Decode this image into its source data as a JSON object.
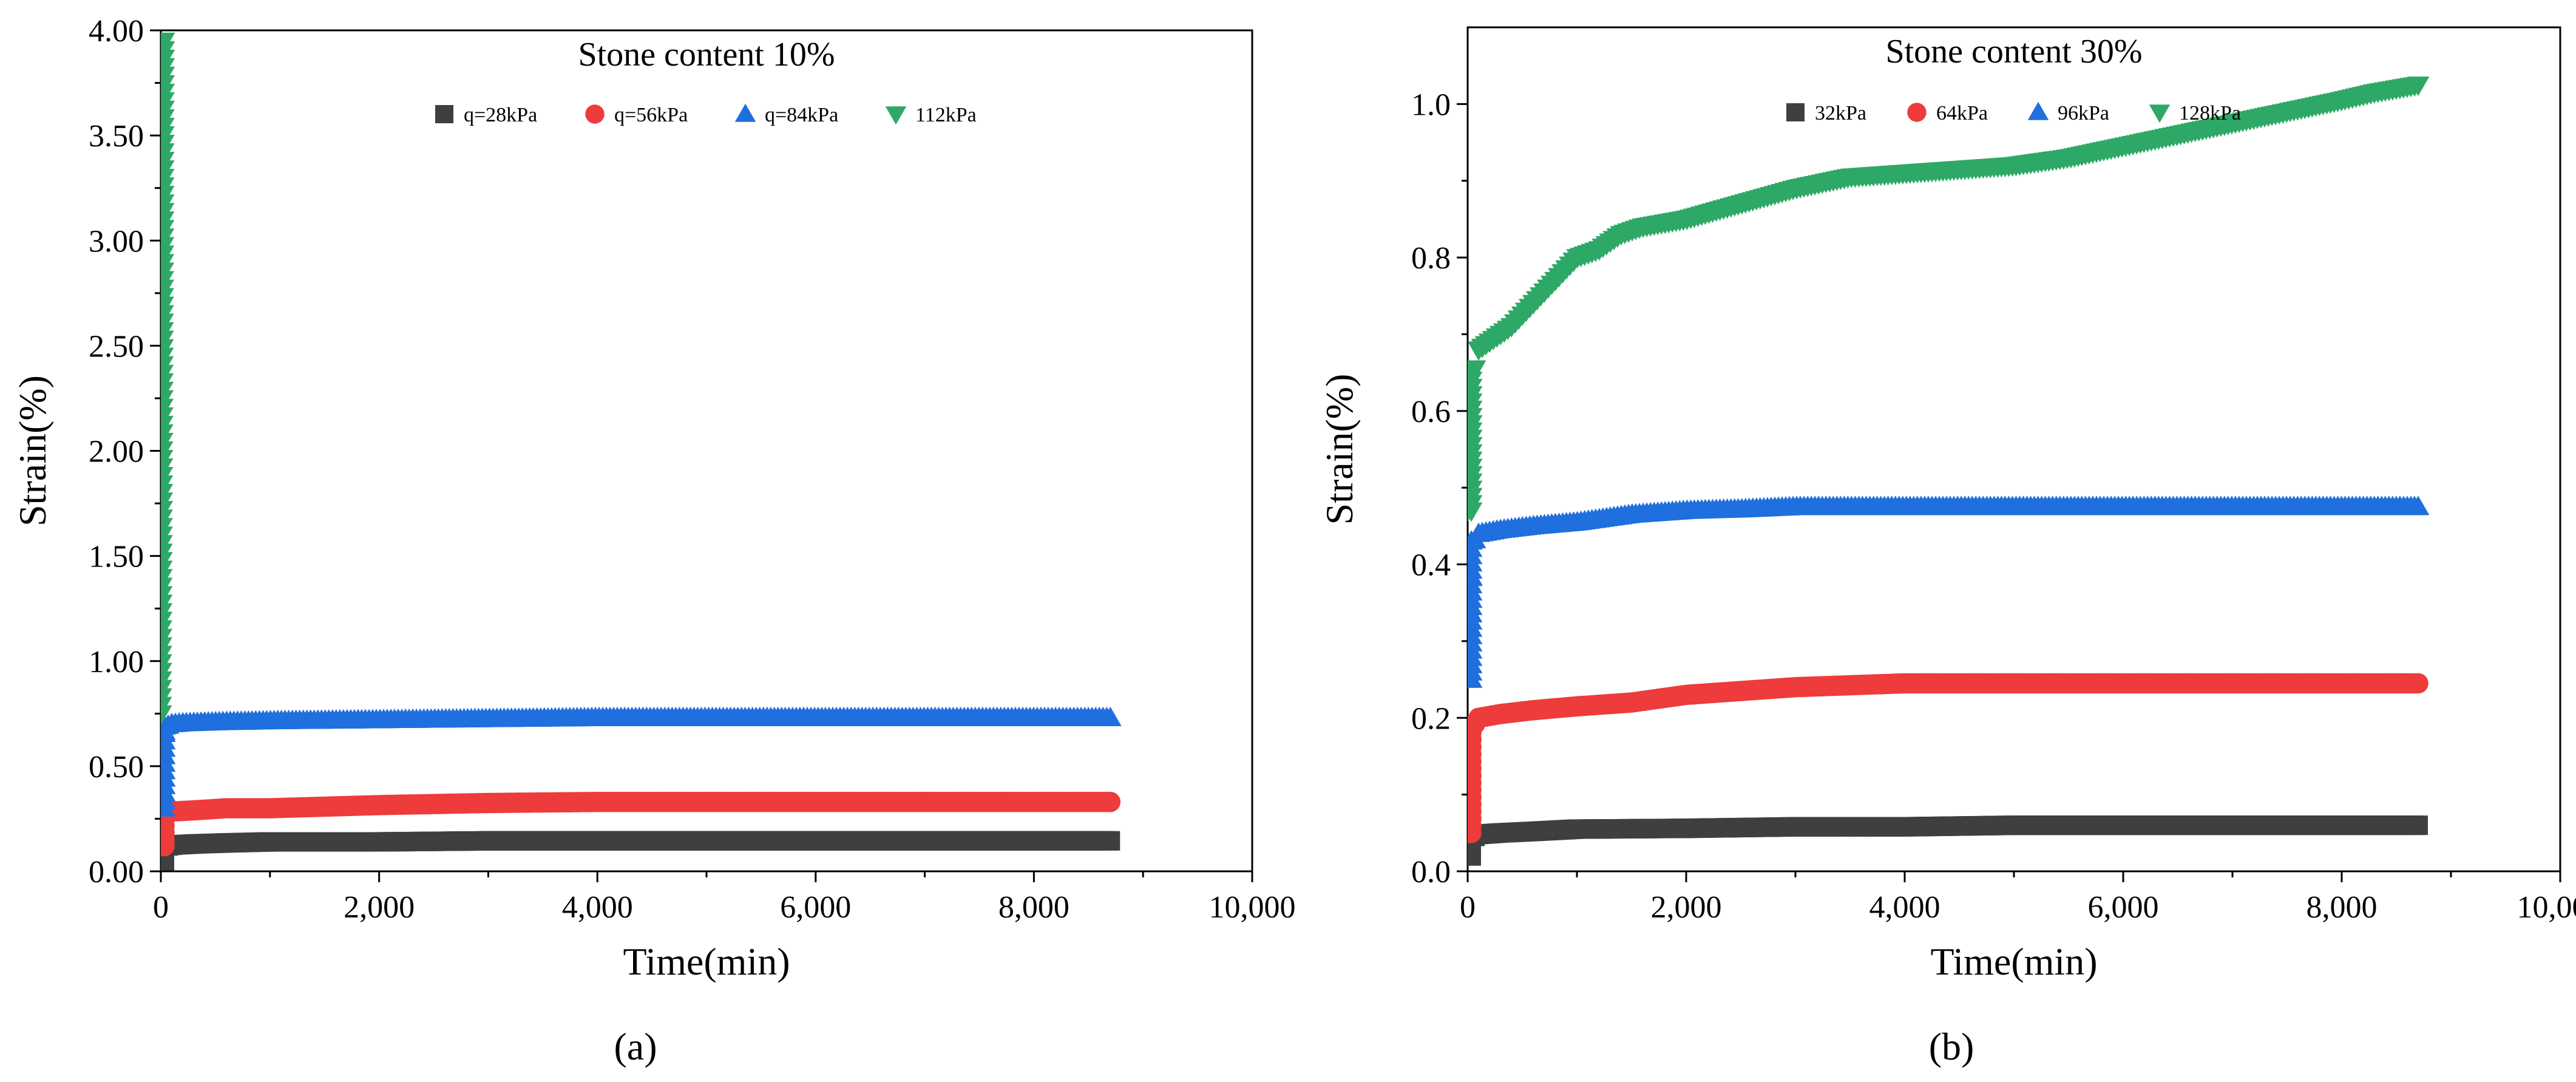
{
  "figure": {
    "panel_labels": [
      "(a)",
      "(b)"
    ]
  },
  "colors": {
    "q1": "#3f3f3f",
    "q2": "#ee3b3b",
    "q3": "#1f6fde",
    "q4": "#2ea866"
  },
  "chart_data": [
    {
      "type": "scatter",
      "title": "Stone content 10%",
      "xlabel": "Time(min)",
      "ylabel": "Strain(%)",
      "xlim": [
        0,
        10000
      ],
      "ylim": [
        0,
        4.0
      ],
      "xticks": [
        0,
        2000,
        4000,
        6000,
        8000,
        10000
      ],
      "xtick_labels": [
        "0",
        "2,000",
        "4,000",
        "6,000",
        "8,000",
        "10,000"
      ],
      "yticks": [
        0,
        0.5,
        1.0,
        1.5,
        2.0,
        2.5,
        3.0,
        3.5,
        4.0
      ],
      "ytick_labels": [
        "0.00",
        "0.50",
        "1.00",
        "1.50",
        "2.00",
        "2.50",
        "3.00",
        "3.50",
        "4.00"
      ],
      "legend_position": "top-center",
      "series": [
        {
          "name": "q=28kPa",
          "marker": "square",
          "color_key": "q1",
          "x": [
            0,
            5,
            20,
            60,
            120,
            300,
            600,
            1000,
            2000,
            3000,
            4000,
            5000,
            6000,
            7000,
            8000,
            8700
          ],
          "y": [
            0.05,
            0.09,
            0.11,
            0.12,
            0.125,
            0.13,
            0.135,
            0.14,
            0.14,
            0.145,
            0.145,
            0.145,
            0.145,
            0.145,
            0.145,
            0.145
          ]
        },
        {
          "name": "q=56kPa",
          "marker": "circle",
          "color_key": "q2",
          "x": [
            0,
            5,
            20,
            60,
            120,
            300,
            600,
            1000,
            2000,
            3000,
            4000,
            5000,
            6000,
            7000,
            8000,
            8700
          ],
          "y": [
            0.12,
            0.22,
            0.27,
            0.28,
            0.285,
            0.29,
            0.3,
            0.3,
            0.315,
            0.325,
            0.33,
            0.33,
            0.33,
            0.33,
            0.33,
            0.33
          ]
        },
        {
          "name": "q=84kPa",
          "marker": "triangle-up",
          "color_key": "q3",
          "x": [
            0,
            5,
            10,
            20,
            40,
            80,
            200,
            500,
            1000,
            2000,
            3000,
            4000,
            5000,
            6000,
            7000,
            8000,
            8700
          ],
          "y": [
            0.3,
            0.45,
            0.55,
            0.63,
            0.68,
            0.7,
            0.705,
            0.71,
            0.715,
            0.72,
            0.725,
            0.73,
            0.73,
            0.73,
            0.73,
            0.73,
            0.73
          ]
        },
        {
          "name": "112kPa",
          "marker": "triangle-down",
          "color_key": "q4",
          "x": [
            0,
            2,
            4,
            6,
            8,
            10,
            12,
            14,
            16,
            18,
            20,
            22,
            24,
            26,
            28
          ],
          "y": [
            0.75,
            1.0,
            1.2,
            1.4,
            1.6,
            1.8,
            2.0,
            2.2,
            2.4,
            2.6,
            2.8,
            3.1,
            3.5,
            3.75,
            3.95
          ]
        }
      ]
    },
    {
      "type": "scatter",
      "title": "Stone content 30%",
      "xlabel": "Time(min)",
      "ylabel": "Strain(%)",
      "xlim": [
        0,
        10000
      ],
      "ylim": [
        0,
        1.1
      ],
      "xticks": [
        0,
        2000,
        4000,
        6000,
        8000,
        10000
      ],
      "xtick_labels": [
        "0",
        "2,000",
        "4,000",
        "6,000",
        "8,000",
        "10,000"
      ],
      "yticks": [
        0,
        0.2,
        0.4,
        0.6,
        0.8,
        1.0
      ],
      "ytick_labels": [
        "0.0",
        "0.2",
        "0.4",
        "0.6",
        "0.8",
        "1.0"
      ],
      "legend_position": "top-center",
      "series": [
        {
          "name": "32kPa",
          "marker": "square",
          "color_key": "q1",
          "x": [
            0,
            10,
            30,
            60,
            100,
            300,
            600,
            1000,
            2000,
            3000,
            4000,
            5000,
            6000,
            7000,
            8000,
            8700
          ],
          "y": [
            0.02,
            0.03,
            0.04,
            0.045,
            0.048,
            0.05,
            0.052,
            0.055,
            0.056,
            0.058,
            0.058,
            0.06,
            0.06,
            0.06,
            0.06,
            0.06
          ]
        },
        {
          "name": "64kPa",
          "marker": "circle",
          "color_key": "q2",
          "x": [
            0,
            10,
            30,
            60,
            100,
            300,
            600,
            1000,
            1500,
            2000,
            2500,
            3000,
            4000,
            5000,
            6000,
            7000,
            8000,
            8700
          ],
          "y": [
            0.05,
            0.12,
            0.17,
            0.19,
            0.2,
            0.205,
            0.21,
            0.215,
            0.22,
            0.23,
            0.235,
            0.24,
            0.245,
            0.245,
            0.245,
            0.245,
            0.245,
            0.245
          ]
        },
        {
          "name": "96kPa",
          "marker": "triangle-up",
          "color_key": "q3",
          "x": [
            0,
            10,
            20,
            40,
            60,
            100,
            300,
            600,
            1000,
            1500,
            2000,
            2500,
            3000,
            4000,
            5000,
            6000,
            7000,
            8000,
            8700
          ],
          "y": [
            0.25,
            0.3,
            0.35,
            0.4,
            0.43,
            0.44,
            0.445,
            0.45,
            0.455,
            0.465,
            0.47,
            0.472,
            0.475,
            0.475,
            0.475,
            0.475,
            0.475,
            0.475,
            0.475
          ]
        },
        {
          "name": "128kPa",
          "marker": "triangle-down",
          "color_key": "q4",
          "x": [
            0,
            20,
            40,
            60,
            100,
            200,
            400,
            600,
            800,
            1000,
            1200,
            1400,
            1600,
            2000,
            2500,
            3000,
            3500,
            4000,
            4500,
            5000,
            5500,
            6000,
            6500,
            7000,
            7500,
            8000,
            8300,
            8700
          ],
          "y": [
            0.47,
            0.55,
            0.6,
            0.65,
            0.68,
            0.69,
            0.71,
            0.74,
            0.77,
            0.8,
            0.81,
            0.83,
            0.84,
            0.85,
            0.87,
            0.89,
            0.905,
            0.91,
            0.915,
            0.92,
            0.93,
            0.945,
            0.96,
            0.975,
            0.99,
            1.005,
            1.015,
            1.025
          ]
        }
      ]
    }
  ]
}
